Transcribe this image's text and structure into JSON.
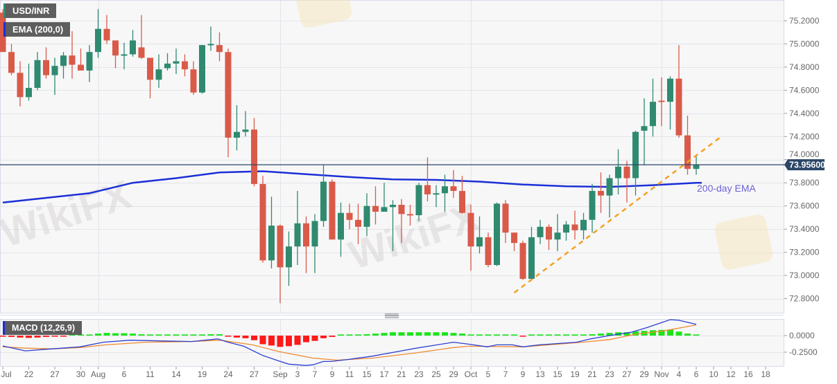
{
  "legend": {
    "symbol": "USD/INR",
    "ema": "EMA (200,0)",
    "macd": "MACD (12,26,9)"
  },
  "annotations": {
    "ema_label": "200-day EMA",
    "watermark": "WikiFX"
  },
  "colors": {
    "up": "#2f8a6f",
    "down": "#d95a49",
    "ema": "#1a2fd6",
    "trendline": "#f5a020",
    "price_line": "#2b4566",
    "macd_line": "#2b3fd0",
    "signal_line": "#f08a30",
    "hist_up": "#19e619",
    "hist_down": "#ff1a1a",
    "ema_label": "#6b63d6"
  },
  "chart_data": {
    "type": "candlestick",
    "title": "USD/INR",
    "ylim": [
      72.7,
      75.35
    ],
    "grid": true,
    "y_ticks": [
      "75.2000",
      "75.0000",
      "74.8000",
      "74.6000",
      "74.4000",
      "74.2000",
      "74.0000",
      "73.8000",
      "73.6000",
      "73.4000",
      "73.2000",
      "73.0000",
      "72.8000"
    ],
    "x_ticks": [
      {
        "label": "Jul",
        "i": 0
      },
      {
        "label": "22",
        "i": 3
      },
      {
        "label": "27",
        "i": 6
      },
      {
        "label": "30",
        "i": 9
      },
      {
        "label": "Aug",
        "i": 11
      },
      {
        "label": "6",
        "i": 14
      },
      {
        "label": "11",
        "i": 17
      },
      {
        "label": "14",
        "i": 20
      },
      {
        "label": "19",
        "i": 23
      },
      {
        "label": "24",
        "i": 26
      },
      {
        "label": "27",
        "i": 29
      },
      {
        "label": "Sep",
        "i": 32
      },
      {
        "label": "3",
        "i": 34
      },
      {
        "label": "7",
        "i": 36
      },
      {
        "label": "9",
        "i": 38
      },
      {
        "label": "11",
        "i": 40
      },
      {
        "label": "15",
        "i": 42
      },
      {
        "label": "17",
        "i": 44
      },
      {
        "label": "21",
        "i": 46
      },
      {
        "label": "23",
        "i": 48
      },
      {
        "label": "25",
        "i": 50
      },
      {
        "label": "29",
        "i": 52
      },
      {
        "label": "Oct",
        "i": 54
      },
      {
        "label": "5",
        "i": 56
      },
      {
        "label": "7",
        "i": 58
      },
      {
        "label": "9",
        "i": 60
      },
      {
        "label": "13",
        "i": 62
      },
      {
        "label": "15",
        "i": 64
      },
      {
        "label": "19",
        "i": 66
      },
      {
        "label": "21",
        "i": 68
      },
      {
        "label": "23",
        "i": 70
      },
      {
        "label": "27",
        "i": 72
      },
      {
        "label": "29",
        "i": 74
      },
      {
        "label": "Nov",
        "i": 76
      },
      {
        "label": "4",
        "i": 78
      },
      {
        "label": "6",
        "i": 80
      },
      {
        "label": "10",
        "i": 82
      },
      {
        "label": "12",
        "i": 84
      },
      {
        "label": "16",
        "i": 86
      },
      {
        "label": "18",
        "i": 88
      }
    ],
    "candles": [
      [
        75.27,
        75.3,
        74.93,
        74.93
      ],
      [
        74.93,
        75.0,
        74.73,
        74.75
      ],
      [
        74.75,
        74.85,
        74.46,
        74.54
      ],
      [
        74.54,
        74.83,
        74.51,
        74.62
      ],
      [
        74.62,
        74.93,
        74.6,
        74.86
      ],
      [
        74.86,
        74.97,
        74.7,
        74.73
      ],
      [
        74.73,
        74.88,
        74.56,
        74.81
      ],
      [
        74.81,
        74.93,
        74.7,
        74.9
      ],
      [
        74.9,
        75.11,
        74.7,
        74.82
      ],
      [
        74.82,
        74.96,
        74.77,
        74.77
      ],
      [
        74.77,
        74.99,
        74.67,
        74.93
      ],
      [
        74.93,
        75.3,
        74.88,
        75.13
      ],
      [
        75.13,
        75.25,
        75.0,
        75.03
      ],
      [
        75.03,
        75.03,
        74.79,
        74.9
      ],
      [
        74.9,
        75.01,
        74.78,
        74.91
      ],
      [
        74.91,
        75.12,
        74.89,
        75.03
      ],
      [
        74.97,
        75.25,
        74.87,
        74.88
      ],
      [
        74.88,
        74.88,
        74.53,
        74.69
      ],
      [
        74.69,
        74.91,
        74.62,
        74.78
      ],
      [
        74.79,
        74.92,
        74.77,
        74.83
      ],
      [
        74.83,
        74.96,
        74.74,
        74.85
      ],
      [
        74.85,
        74.91,
        74.72,
        74.78
      ],
      [
        74.78,
        74.85,
        74.56,
        74.58
      ],
      [
        74.58,
        74.99,
        74.57,
        74.99
      ],
      [
        74.99,
        75.15,
        74.94,
        75.0
      ],
      [
        74.99,
        75.1,
        74.85,
        74.93
      ],
      [
        74.93,
        74.96,
        74.02,
        74.19
      ],
      [
        74.19,
        74.47,
        74.08,
        74.24
      ],
      [
        74.24,
        74.42,
        74.2,
        74.26
      ],
      [
        74.26,
        74.36,
        73.77,
        73.79
      ],
      [
        73.79,
        73.86,
        73.11,
        73.13
      ],
      [
        73.13,
        73.68,
        73.06,
        73.43
      ],
      [
        73.43,
        73.44,
        72.76,
        73.07
      ],
      [
        73.07,
        73.38,
        72.91,
        73.25
      ],
      [
        73.25,
        73.73,
        73.09,
        73.45
      ],
      [
        73.45,
        73.51,
        73.02,
        73.25
      ],
      [
        73.25,
        73.53,
        73.02,
        73.47
      ],
      [
        73.47,
        73.96,
        73.42,
        73.81
      ],
      [
        73.81,
        73.83,
        73.31,
        73.31
      ],
      [
        73.31,
        73.63,
        73.16,
        73.54
      ],
      [
        73.54,
        73.62,
        73.4,
        73.48
      ],
      [
        73.48,
        73.62,
        73.27,
        73.42
      ],
      [
        73.42,
        73.71,
        73.34,
        73.6
      ],
      [
        73.6,
        73.77,
        73.44,
        73.55
      ],
      [
        73.55,
        73.8,
        73.55,
        73.59
      ],
      [
        73.59,
        73.65,
        73.21,
        73.61
      ],
      [
        73.61,
        73.66,
        73.28,
        73.53
      ],
      [
        73.53,
        73.61,
        73.43,
        73.52
      ],
      [
        73.52,
        73.8,
        73.47,
        73.78
      ],
      [
        73.78,
        74.02,
        73.64,
        73.7
      ],
      [
        73.7,
        73.78,
        73.59,
        73.71
      ],
      [
        73.71,
        73.87,
        73.55,
        73.77
      ],
      [
        73.77,
        73.91,
        73.67,
        73.73
      ],
      [
        73.73,
        73.86,
        73.53,
        73.54
      ],
      [
        73.54,
        73.61,
        73.04,
        73.25
      ],
      [
        73.25,
        73.51,
        73.19,
        73.33
      ],
      [
        73.33,
        73.37,
        73.07,
        73.09
      ],
      [
        73.09,
        73.63,
        73.08,
        73.62
      ],
      [
        73.62,
        73.65,
        73.28,
        73.37
      ],
      [
        73.37,
        73.37,
        73.21,
        73.28
      ],
      [
        73.28,
        73.3,
        72.96,
        72.97
      ],
      [
        72.97,
        73.42,
        72.97,
        73.33
      ],
      [
        73.33,
        73.48,
        73.27,
        73.42
      ],
      [
        73.42,
        73.44,
        73.22,
        73.31
      ],
      [
        73.31,
        73.53,
        73.21,
        73.37
      ],
      [
        73.37,
        73.47,
        73.3,
        73.44
      ],
      [
        73.44,
        73.56,
        73.31,
        73.39
      ],
      [
        73.39,
        73.54,
        73.31,
        73.48
      ],
      [
        73.48,
        73.79,
        73.37,
        73.73
      ],
      [
        73.73,
        73.89,
        73.54,
        73.69
      ],
      [
        73.69,
        73.87,
        73.5,
        73.84
      ],
      [
        73.84,
        74.09,
        73.7,
        73.94
      ],
      [
        73.94,
        73.99,
        73.63,
        73.84
      ],
      [
        73.84,
        74.25,
        73.69,
        74.24
      ],
      [
        74.25,
        74.53,
        73.95,
        74.29
      ],
      [
        74.29,
        74.7,
        74.2,
        74.5
      ],
      [
        74.51,
        74.71,
        74.29,
        74.5
      ],
      [
        74.5,
        74.72,
        74.26,
        74.7
      ],
      [
        74.7,
        74.99,
        74.19,
        74.21
      ],
      [
        74.21,
        74.38,
        73.87,
        73.92
      ],
      [
        73.92,
        74.04,
        73.87,
        73.956
      ]
    ],
    "ema200": [
      {
        "i": 0,
        "v": 73.63
      },
      {
        "i": 5,
        "v": 73.67
      },
      {
        "i": 10,
        "v": 73.71
      },
      {
        "i": 15,
        "v": 73.8
      },
      {
        "i": 20,
        "v": 73.84
      },
      {
        "i": 25,
        "v": 73.89
      },
      {
        "i": 30,
        "v": 73.9
      },
      {
        "i": 35,
        "v": 73.875
      },
      {
        "i": 40,
        "v": 73.85
      },
      {
        "i": 45,
        "v": 73.83
      },
      {
        "i": 50,
        "v": 73.825
      },
      {
        "i": 55,
        "v": 73.81
      },
      {
        "i": 60,
        "v": 73.785
      },
      {
        "i": 65,
        "v": 73.77
      },
      {
        "i": 70,
        "v": 73.765
      },
      {
        "i": 75,
        "v": 73.78
      },
      {
        "i": 80,
        "v": 73.8
      }
    ],
    "trendline": [
      {
        "i": 59,
        "v": 72.85
      },
      {
        "i": 82.9,
        "v": 74.2
      }
    ],
    "current_price": "73.95600",
    "current_price_value": 73.956,
    "macd": {
      "ylim": [
        -0.47,
        0.25
      ],
      "y_ticks": [
        {
          "label": "0.0000",
          "v": 0
        },
        {
          "label": "-0.2500",
          "v": -0.25
        }
      ],
      "macd_line": [
        {
          "i": 0,
          "v": -0.156
        },
        {
          "i": 2.6,
          "v": -0.23
        },
        {
          "i": 5.7,
          "v": -0.2
        },
        {
          "i": 8.9,
          "v": -0.17
        },
        {
          "i": 11.6,
          "v": -0.1
        },
        {
          "i": 14.7,
          "v": -0.07
        },
        {
          "i": 18.1,
          "v": -0.08
        },
        {
          "i": 21.8,
          "v": -0.09
        },
        {
          "i": 24.8,
          "v": -0.05
        },
        {
          "i": 26,
          "v": -0.1
        },
        {
          "i": 27.8,
          "v": -0.16
        },
        {
          "i": 30,
          "v": -0.3
        },
        {
          "i": 31.8,
          "v": -0.38
        },
        {
          "i": 33,
          "v": -0.43
        },
        {
          "i": 34.9,
          "v": -0.45
        },
        {
          "i": 35.8,
          "v": -0.44
        },
        {
          "i": 37,
          "v": -0.39
        },
        {
          "i": 37.9,
          "v": -0.39
        },
        {
          "i": 39.8,
          "v": -0.36
        },
        {
          "i": 42.6,
          "v": -0.31
        },
        {
          "i": 45.6,
          "v": -0.24
        },
        {
          "i": 47.7,
          "v": -0.19
        },
        {
          "i": 52,
          "v": -0.1
        },
        {
          "i": 53.8,
          "v": -0.13
        },
        {
          "i": 55.9,
          "v": -0.17
        },
        {
          "i": 57,
          "v": -0.14
        },
        {
          "i": 58.8,
          "v": -0.14
        },
        {
          "i": 60,
          "v": -0.17
        },
        {
          "i": 61.9,
          "v": -0.14
        },
        {
          "i": 66.2,
          "v": -0.1
        },
        {
          "i": 67.8,
          "v": -0.05
        },
        {
          "i": 70,
          "v": 0
        },
        {
          "i": 72.5,
          "v": 0.05
        },
        {
          "i": 74.3,
          "v": 0.12
        },
        {
          "i": 77,
          "v": 0.24
        },
        {
          "i": 78,
          "v": 0.23
        },
        {
          "i": 80,
          "v": 0.17
        }
      ],
      "signal_line": [
        {
          "i": 0,
          "v": -0.17
        },
        {
          "i": 2.7,
          "v": -0.19
        },
        {
          "i": 5.8,
          "v": -0.2
        },
        {
          "i": 8.9,
          "v": -0.18
        },
        {
          "i": 11.9,
          "v": -0.14
        },
        {
          "i": 16.5,
          "v": -0.1
        },
        {
          "i": 21.8,
          "v": -0.09
        },
        {
          "i": 25.1,
          "v": -0.07
        },
        {
          "i": 28.8,
          "v": -0.14
        },
        {
          "i": 31.8,
          "v": -0.24
        },
        {
          "i": 35.8,
          "v": -0.34
        },
        {
          "i": 38.6,
          "v": -0.37
        },
        {
          "i": 42.6,
          "v": -0.34
        },
        {
          "i": 47.7,
          "v": -0.26
        },
        {
          "i": 52,
          "v": -0.18
        },
        {
          "i": 53.8,
          "v": -0.16
        },
        {
          "i": 60,
          "v": -0.17
        },
        {
          "i": 66.9,
          "v": -0.1
        },
        {
          "i": 70,
          "v": -0.06
        },
        {
          "i": 73,
          "v": 0.02
        },
        {
          "i": 76.2,
          "v": 0.07
        },
        {
          "i": 80,
          "v": 0.16
        }
      ],
      "histogram": [
        -0.01,
        -0.02,
        -0.03,
        -0.035,
        -0.03,
        -0.02,
        -0.01,
        -0.005,
        0,
        0.005,
        0.01,
        0.03,
        0.04,
        0.035,
        0.035,
        0.03,
        0.02,
        0.01,
        0.005,
        0.005,
        0.005,
        0.005,
        0,
        0.01,
        0.02,
        0.02,
        -0.01,
        -0.03,
        -0.04,
        -0.07,
        -0.13,
        -0.15,
        -0.17,
        -0.16,
        -0.14,
        -0.1,
        -0.08,
        -0.04,
        -0.02,
        0,
        0.005,
        0.01,
        0.02,
        0.03,
        0.04,
        0.05,
        0.05,
        0.05,
        0.05,
        0.05,
        0.05,
        0.05,
        0.04,
        0.03,
        0.015,
        0.005,
        0.005,
        0.005,
        0,
        0,
        -0.01,
        0,
        0.005,
        0.005,
        0.01,
        0.01,
        0.01,
        0.015,
        0.02,
        0.03,
        0.04,
        0.05,
        0.05,
        0.065,
        0.07,
        0.08,
        0.085,
        0.09,
        0.06,
        0.03,
        0.01
      ]
    }
  }
}
